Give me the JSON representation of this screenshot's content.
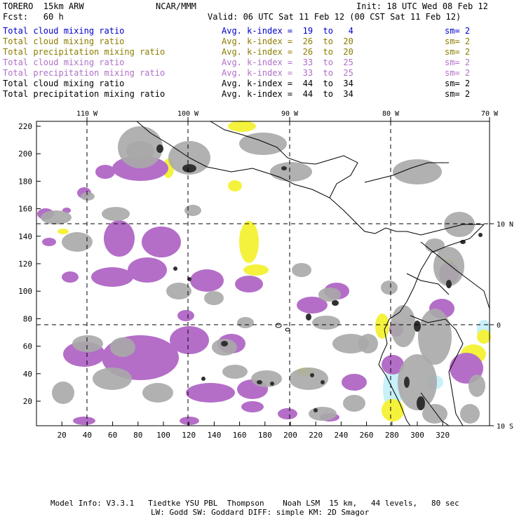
{
  "header": {
    "model": "TORERO  15km ARW",
    "org": "NCAR/MMM",
    "init": "Init: 18 UTC Wed 08 Feb 12",
    "fcst": "Fcst:   60 h",
    "valid": "Valid: 06 UTC Sat 11 Feb 12 (00 CST Sat 11 Feb 12)"
  },
  "legend": [
    {
      "field": "Total cloud mixing ratio",
      "index": "Avg. k-index =  19  to   4",
      "sm": "sm= 2",
      "color": "#0000cc"
    },
    {
      "field": "Total cloud mixing ratio",
      "index": "Avg. k-index =  26  to  20",
      "sm": "sm= 2",
      "color": "#8c7c00"
    },
    {
      "field": "Total precipitation mixing ratio",
      "index": "Avg. k-index =  26  to  20",
      "sm": "sm= 2",
      "color": "#8c7c00"
    },
    {
      "field": "Total cloud mixing ratio",
      "index": "Avg. k-index =  33  to  25",
      "sm": "sm= 2",
      "color": "#b070c8"
    },
    {
      "field": "Total precipitation mixing ratio",
      "index": "Avg. k-index =  33  to  25",
      "sm": "sm= 2",
      "color": "#b070c8"
    },
    {
      "field": "Total cloud mixing ratio",
      "index": "Avg. k-index =  44  to  34",
      "sm": "sm= 2",
      "color": "#000000"
    },
    {
      "field": "Total precipitation mixing ratio",
      "index": "Avg. k-index =  44  to  34",
      "sm": "sm= 2",
      "color": "#000000"
    }
  ],
  "map": {
    "lon_labels": [
      "110 W",
      "100 W",
      "90 W",
      "80 W",
      "70 W"
    ],
    "lat_labels": [
      "10 N",
      "0",
      "10 S"
    ],
    "x_ticks": [
      "20",
      "40",
      "60",
      "80",
      "100",
      "120",
      "140",
      "160",
      "180",
      "200",
      "220",
      "240",
      "260",
      "280",
      "300",
      "320"
    ],
    "y_ticks": [
      "220",
      "200",
      "180",
      "160",
      "140",
      "120",
      "100",
      "80",
      "60",
      "40",
      "20"
    ],
    "colors": {
      "gray": "#a8a8a8",
      "dark": "#303030",
      "purple": "#b46ec8",
      "yellow": "#f4f23c",
      "cyan": "#c8f0f8"
    }
  },
  "footer": {
    "line1": "Model Info: V3.3.1   Tiedtke YSU PBL  Thompson    Noah LSM  15 km,   44 levels,   80 sec",
    "line2": "LW: Godd SW: Goddard DIFF: simple KM: 2D Smagor"
  }
}
